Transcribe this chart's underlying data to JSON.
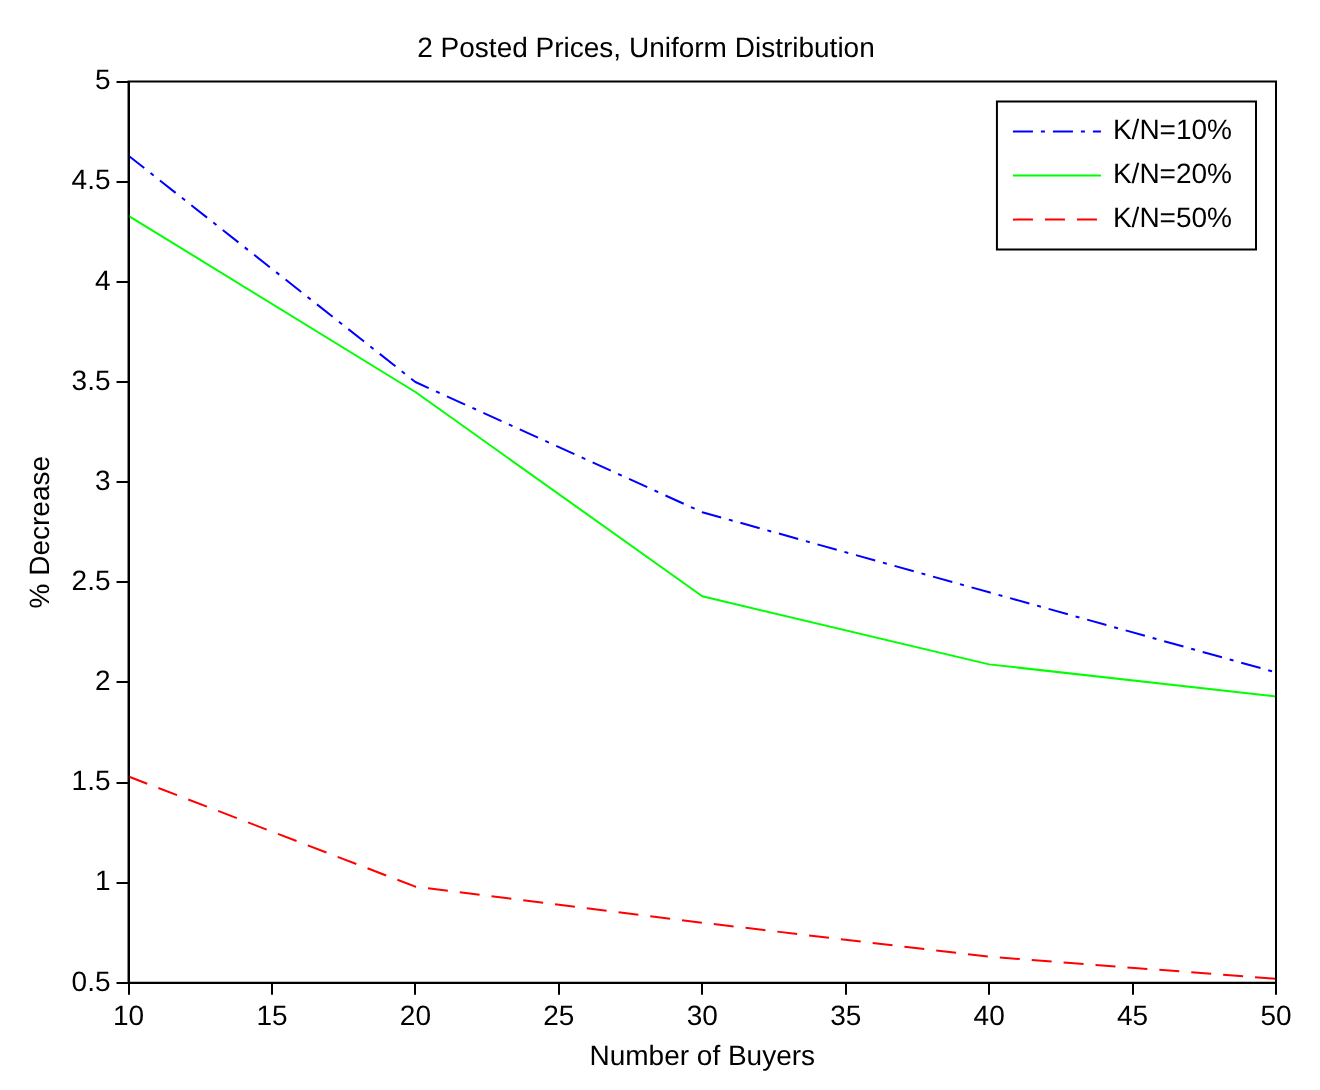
{
  "chart_data": {
    "type": "line",
    "title": "2 Posted Prices, Uniform Distribution",
    "xlabel": "Number of Buyers",
    "ylabel": "% Decrease",
    "x": [
      10,
      20,
      30,
      40,
      50
    ],
    "series": [
      {
        "name": "K/N=10%",
        "color": "#0000ff",
        "line_style": "dashdot",
        "values": [
          4.63,
          3.5,
          2.85,
          2.45,
          2.05
        ]
      },
      {
        "name": "K/N=20%",
        "color": "#00ff00",
        "line_style": "solid",
        "values": [
          4.33,
          3.45,
          2.43,
          2.09,
          1.93
        ]
      },
      {
        "name": "K/N=50%",
        "color": "#ff0000",
        "line_style": "dashed",
        "values": [
          1.53,
          0.98,
          0.8,
          0.63,
          0.52
        ]
      }
    ],
    "xlim": [
      10,
      50
    ],
    "xticks": [
      10,
      15,
      20,
      25,
      30,
      35,
      40,
      45,
      50
    ],
    "ylim": [
      0.5,
      5
    ],
    "yticks": [
      0.5,
      1,
      1.5,
      2,
      2.5,
      3,
      3.5,
      4,
      4.5,
      5
    ],
    "grid": false,
    "legend": "top right",
    "marker": "none"
  }
}
